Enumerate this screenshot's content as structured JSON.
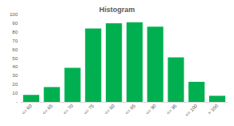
{
  "chart_data": {
    "type": "bar",
    "title": "Histogram",
    "categories": [
      "<= 60",
      "<= 65",
      "<= 70",
      "<= 75",
      "<= 80",
      "<= 85",
      "<= 90",
      "<= 95",
      "<= 100",
      "> 100"
    ],
    "values": [
      8,
      17,
      39,
      84,
      90,
      91,
      86,
      51,
      23,
      7
    ],
    "color": "#00b050",
    "ylim": [
      0,
      100
    ],
    "yticks": [
      {
        "value": 0,
        "label": "-"
      },
      10,
      20,
      30,
      40,
      50,
      60,
      70,
      80,
      90,
      100
    ],
    "grid": false
  }
}
